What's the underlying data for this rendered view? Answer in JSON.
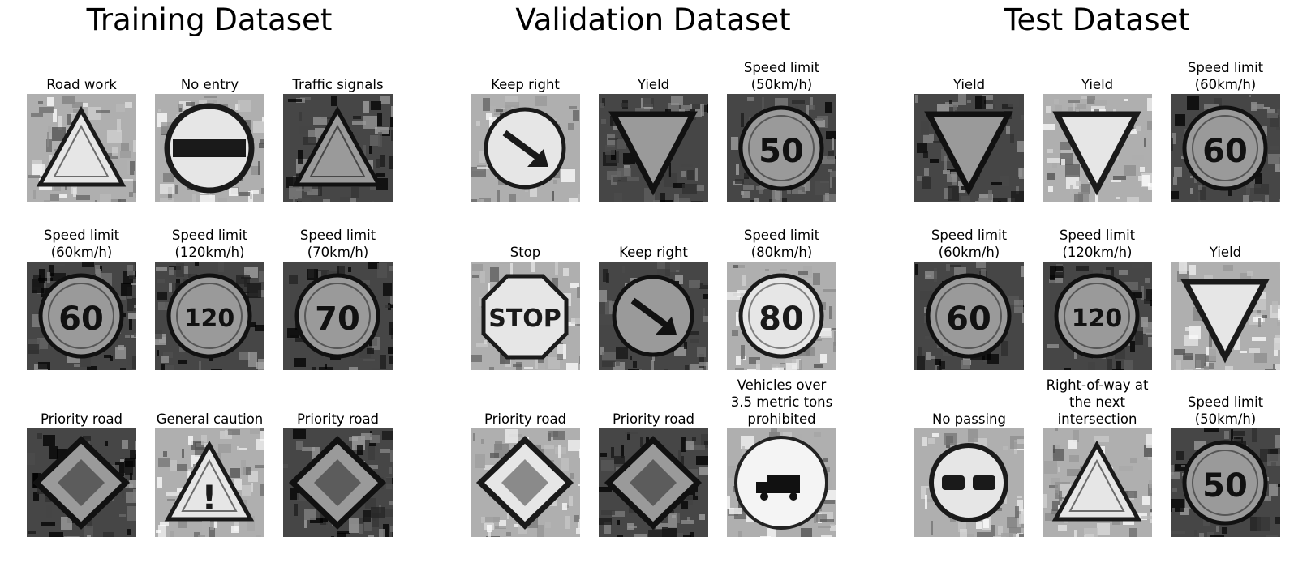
{
  "panels": [
    {
      "title": "Training Dataset",
      "images": [
        {
          "label": "Road work",
          "icon": "triangle-sign-icon",
          "glyph": "",
          "tone": "light"
        },
        {
          "label": "No entry",
          "icon": "no-entry-sign-icon",
          "glyph": "",
          "tone": "light"
        },
        {
          "label": "Traffic signals",
          "icon": "triangle-sign-icon",
          "glyph": "",
          "tone": "dark"
        },
        {
          "label": "Speed limit\n(60km/h)",
          "icon": "circle-sign-icon",
          "glyph": "60",
          "tone": "dark"
        },
        {
          "label": "Speed limit\n(120km/h)",
          "icon": "circle-sign-icon",
          "glyph": "120",
          "tone": "dark"
        },
        {
          "label": "Speed limit\n(70km/h)",
          "icon": "circle-sign-icon",
          "glyph": "70",
          "tone": "dark"
        },
        {
          "label": "Priority road",
          "icon": "diamond-sign-icon",
          "glyph": "",
          "tone": "dark"
        },
        {
          "label": "General caution",
          "icon": "triangle-sign-icon",
          "glyph": "!",
          "tone": "light"
        },
        {
          "label": "Priority road",
          "icon": "diamond-sign-icon",
          "glyph": "",
          "tone": "dark"
        }
      ]
    },
    {
      "title": "Validation Dataset",
      "images": [
        {
          "label": "Keep right",
          "icon": "arrow-sign-icon",
          "glyph": "",
          "tone": "light"
        },
        {
          "label": "Yield",
          "icon": "inverted-triangle-sign-icon",
          "glyph": "",
          "tone": "dark"
        },
        {
          "label": "Speed limit\n(50km/h)",
          "icon": "circle-sign-icon",
          "glyph": "50",
          "tone": "dark"
        },
        {
          "label": "Stop",
          "icon": "octagon-sign-icon",
          "glyph": "STOP",
          "tone": "light"
        },
        {
          "label": "Keep right",
          "icon": "arrow-sign-icon",
          "glyph": "",
          "tone": "dark"
        },
        {
          "label": "Speed limit\n(80km/h)",
          "icon": "circle-sign-icon",
          "glyph": "80",
          "tone": "light"
        },
        {
          "label": "Priority road",
          "icon": "diamond-sign-icon",
          "glyph": "",
          "tone": "light"
        },
        {
          "label": "Priority road",
          "icon": "diamond-sign-icon",
          "glyph": "",
          "tone": "dark"
        },
        {
          "label": "Vehicles over\n3.5 metric tons\nprohibited",
          "icon": "circle-truck-sign-icon",
          "glyph": "",
          "tone": "light"
        }
      ]
    },
    {
      "title": "Test Dataset",
      "images": [
        {
          "label": "Yield",
          "icon": "inverted-triangle-sign-icon",
          "glyph": "",
          "tone": "dark"
        },
        {
          "label": "Yield",
          "icon": "inverted-triangle-sign-icon",
          "glyph": "",
          "tone": "light"
        },
        {
          "label": "Speed limit\n(60km/h)",
          "icon": "circle-sign-icon",
          "glyph": "60",
          "tone": "dark"
        },
        {
          "label": "Speed limit\n(60km/h)",
          "icon": "circle-sign-icon",
          "glyph": "60",
          "tone": "dark"
        },
        {
          "label": "Speed limit\n(120km/h)",
          "icon": "circle-sign-icon",
          "glyph": "120",
          "tone": "dark"
        },
        {
          "label": "Yield",
          "icon": "inverted-triangle-sign-icon",
          "glyph": "",
          "tone": "light"
        },
        {
          "label": "No passing",
          "icon": "no-passing-sign-icon",
          "glyph": "",
          "tone": "light"
        },
        {
          "label": "Right-of-way at\nthe next\nintersection",
          "icon": "triangle-sign-icon",
          "glyph": "",
          "tone": "light"
        },
        {
          "label": "Speed limit\n(50km/h)",
          "icon": "circle-sign-icon",
          "glyph": "50",
          "tone": "dark"
        }
      ]
    }
  ]
}
